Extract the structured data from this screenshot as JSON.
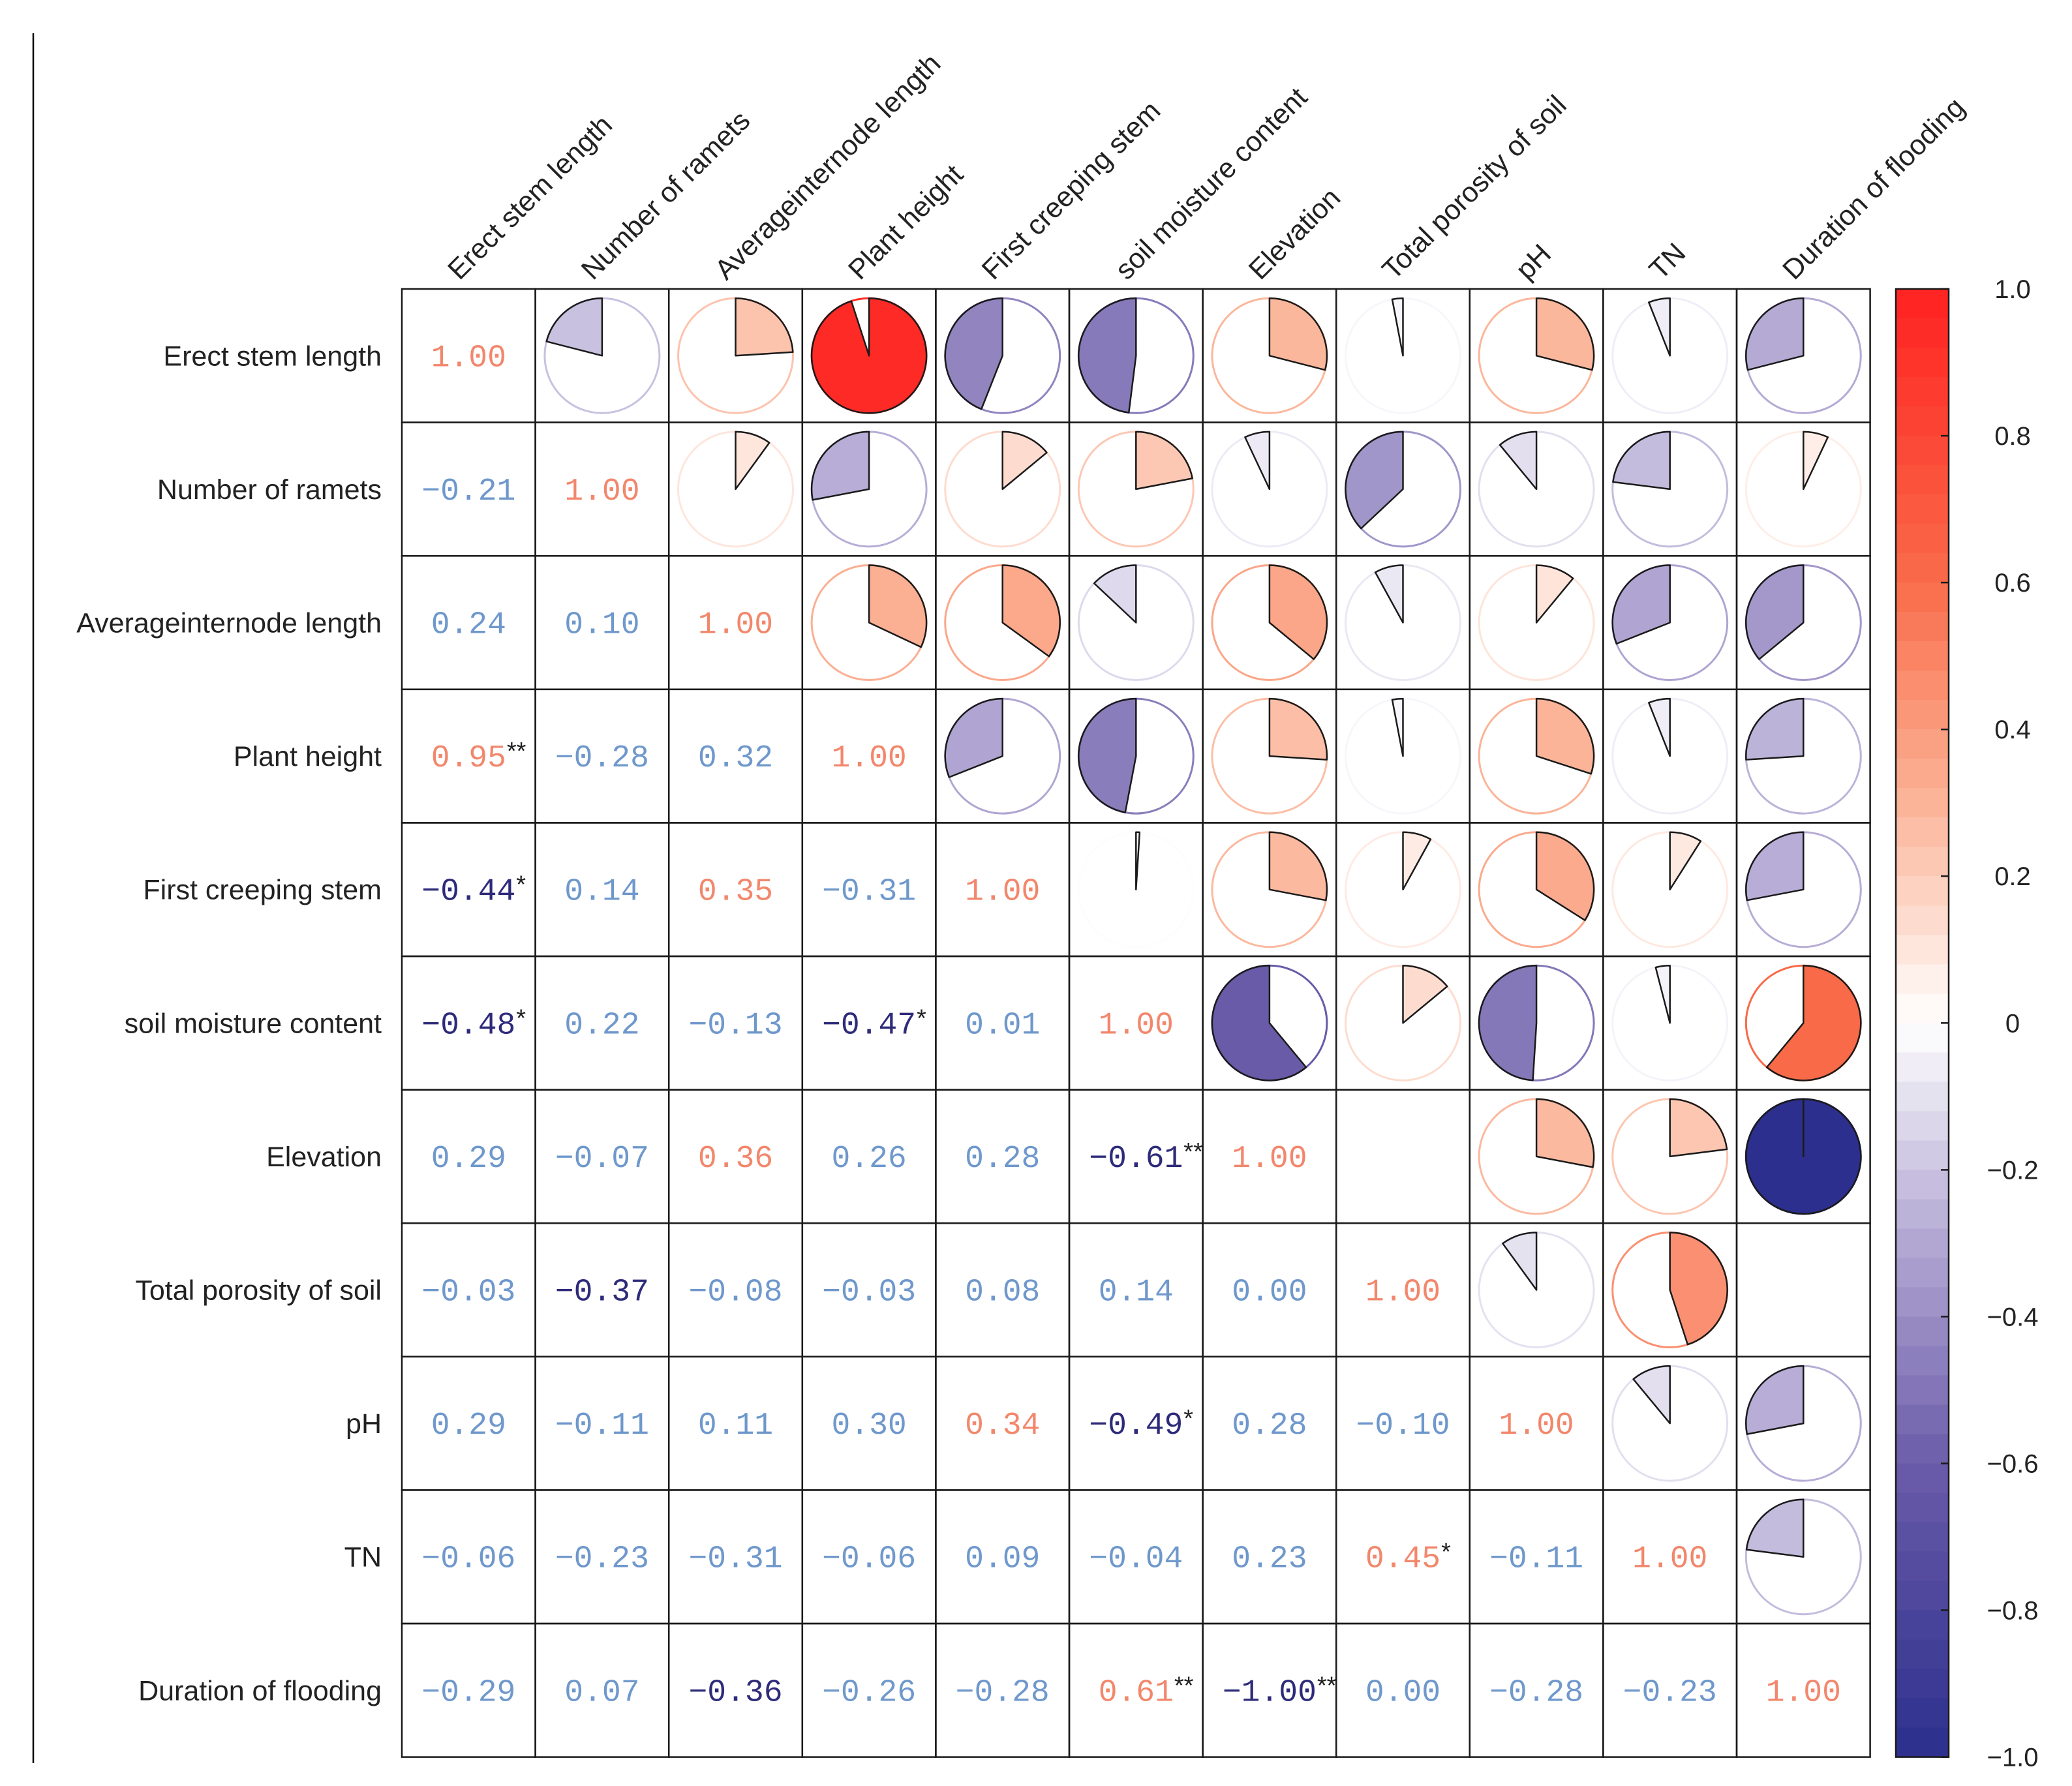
{
  "chart_data": {
    "type": "heatmap",
    "variables": [
      "Erect stem length",
      "Number of ramets",
      "Averageinternode length",
      "Plant height",
      "First creeping stem",
      "soil moisture content",
      "Elevation",
      "Total porosity of soil",
      "pH",
      "TN",
      "Duration of flooding"
    ],
    "r": [
      [
        1.0,
        -0.21,
        0.24,
        0.95,
        -0.44,
        -0.48,
        0.29,
        -0.03,
        0.29,
        -0.06,
        -0.29
      ],
      [
        -0.21,
        1.0,
        0.1,
        -0.28,
        0.14,
        0.22,
        -0.07,
        -0.37,
        -0.11,
        -0.23,
        0.07
      ],
      [
        0.24,
        0.1,
        1.0,
        0.32,
        0.35,
        -0.13,
        0.36,
        -0.08,
        0.11,
        -0.31,
        -0.36
      ],
      [
        0.95,
        -0.28,
        0.32,
        1.0,
        -0.31,
        -0.47,
        0.26,
        -0.03,
        0.3,
        -0.06,
        -0.26
      ],
      [
        -0.44,
        0.14,
        0.35,
        -0.31,
        1.0,
        0.01,
        0.28,
        0.08,
        0.34,
        0.09,
        -0.28
      ],
      [
        -0.48,
        0.22,
        -0.13,
        -0.47,
        0.01,
        1.0,
        -0.61,
        0.14,
        -0.49,
        -0.04,
        0.61
      ],
      [
        0.29,
        -0.07,
        0.36,
        0.26,
        0.28,
        -0.61,
        1.0,
        0.0,
        0.28,
        0.23,
        -1.0
      ],
      [
        -0.03,
        -0.37,
        -0.08,
        -0.03,
        0.08,
        0.14,
        0.0,
        1.0,
        -0.1,
        0.45,
        0.0
      ],
      [
        0.29,
        -0.11,
        0.11,
        0.3,
        0.34,
        -0.49,
        0.28,
        -0.1,
        1.0,
        -0.11,
        -0.28
      ],
      [
        -0.06,
        -0.23,
        -0.31,
        -0.06,
        0.09,
        -0.04,
        0.23,
        0.45,
        -0.11,
        1.0,
        -0.23
      ],
      [
        -0.29,
        0.07,
        -0.36,
        -0.26,
        -0.28,
        0.61,
        -1.0,
        0.0,
        -0.28,
        -0.23,
        1.0
      ]
    ],
    "labels": [
      [
        "1.00"
      ],
      [
        "−0.21",
        "1.00"
      ],
      [
        "0.24",
        "0.10",
        "1.00"
      ],
      [
        "0.95",
        "−0.28",
        "0.32",
        "1.00"
      ],
      [
        "−0.44",
        "0.14",
        "0.35",
        "−0.31",
        "1.00"
      ],
      [
        "−0.48",
        "0.22",
        "−0.13",
        "−0.47",
        "0.01",
        "1.00"
      ],
      [
        "0.29",
        "−0.07",
        "0.36",
        "0.26",
        "0.28",
        "−0.61",
        "1.00"
      ],
      [
        "−0.03",
        "−0.37",
        "−0.08",
        "−0.03",
        "0.08",
        "0.14",
        "0.00",
        "1.00"
      ],
      [
        "0.29",
        "−0.11",
        "0.11",
        "0.30",
        "0.34",
        "−0.49",
        "0.28",
        "−0.10",
        "1.00"
      ],
      [
        "−0.06",
        "−0.23",
        "−0.31",
        "−0.06",
        "0.09",
        "−0.04",
        "0.23",
        "0.45",
        "−0.11",
        "1.00"
      ],
      [
        "−0.29",
        "0.07",
        "−0.36",
        "−0.26",
        "−0.28",
        "0.61",
        "−1.00",
        "0.00",
        "−0.28",
        "−0.23",
        "1.00"
      ]
    ],
    "significance": [
      [
        null
      ],
      [
        null,
        null
      ],
      [
        null,
        null,
        null
      ],
      [
        "**",
        null,
        null,
        null
      ],
      [
        "*",
        null,
        null,
        null,
        null
      ],
      [
        "*",
        null,
        null,
        "*",
        null,
        null
      ],
      [
        null,
        null,
        null,
        null,
        null,
        "**",
        null
      ],
      [
        null,
        null,
        null,
        null,
        null,
        null,
        null,
        null
      ],
      [
        null,
        null,
        null,
        null,
        null,
        "*",
        null,
        null,
        null
      ],
      [
        null,
        null,
        null,
        null,
        null,
        null,
        null,
        "*",
        null,
        null
      ],
      [
        null,
        null,
        null,
        null,
        null,
        "**",
        "**",
        null,
        null,
        null,
        null
      ]
    ],
    "colorbar": {
      "range": [
        -1,
        1
      ],
      "tick_values": [
        1.0,
        0.8,
        0.6,
        0.4,
        0.2,
        0,
        -0.2,
        -0.4,
        -0.6,
        -0.8,
        -1.0
      ],
      "tick_labels": [
        "1.0",
        "0.8",
        "0.6",
        "0.4",
        "0.2",
        "0",
        "−0.2",
        "−0.4",
        "−0.6",
        "−0.8",
        "−1.0"
      ]
    },
    "colormap": [
      {
        "v": -1.0,
        "c": "#2c2f8d"
      },
      {
        "v": -0.6,
        "c": "#6b5ca9"
      },
      {
        "v": -0.3,
        "c": "#b2a7d3"
      },
      {
        "v": 0.0,
        "c": "#ffffff"
      },
      {
        "v": 0.3,
        "c": "#fbb498"
      },
      {
        "v": 0.6,
        "c": "#f96c4a"
      },
      {
        "v": 1.0,
        "c": "#ff2121"
      }
    ],
    "label_colors": {
      "positive": "#f2876c",
      "negative": "#2e2b7a",
      "weak": "#6f98cc"
    }
  }
}
